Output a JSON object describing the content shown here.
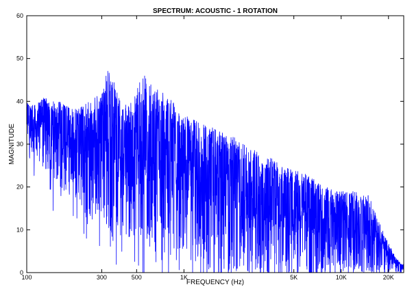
{
  "chart_data": {
    "type": "line",
    "title": "SPECTRUM: ACOUSTIC - 1 ROTATION",
    "xlabel": "FREQUENCY (Hz)",
    "ylabel": "MAGNITUDE",
    "x_scale": "log",
    "xlim": [
      100,
      25000
    ],
    "ylim": [
      0,
      60
    ],
    "x_ticks": [
      {
        "value": 100,
        "label": "100"
      },
      {
        "value": 300,
        "label": "300"
      },
      {
        "value": 500,
        "label": "500"
      },
      {
        "value": 1000,
        "label": "1K"
      },
      {
        "value": 5000,
        "label": "5K"
      },
      {
        "value": 10000,
        "label": "10K"
      },
      {
        "value": 20000,
        "label": "20K"
      }
    ],
    "y_ticks": [
      {
        "value": 0,
        "label": "0"
      },
      {
        "value": 10,
        "label": "10"
      },
      {
        "value": 20,
        "label": "20"
      },
      {
        "value": 30,
        "label": "30"
      },
      {
        "value": 40,
        "label": "40"
      },
      {
        "value": 50,
        "label": "50"
      },
      {
        "value": 60,
        "label": "60"
      }
    ],
    "grid": false,
    "series": [
      {
        "color": "#0000ff",
        "upper_envelope": {
          "x": [
            100,
            110,
            130,
            160,
            200,
            250,
            300,
            330,
            360,
            400,
            450,
            500,
            550,
            600,
            700,
            800,
            1000,
            1300,
            1700,
            2000,
            3000,
            4000,
            5000,
            6000,
            8000,
            10000,
            12000,
            15000,
            18000,
            20000,
            22000,
            24000
          ],
          "y": [
            40,
            39,
            41,
            40,
            38,
            40,
            42,
            49,
            45,
            39,
            40,
            43,
            47,
            45,
            43,
            41,
            37,
            35,
            33,
            32,
            28,
            26,
            24,
            23,
            20,
            19,
            19,
            18,
            11,
            7,
            4,
            2
          ]
        },
        "lower_envelope": {
          "x": [
            100,
            130,
            160,
            200,
            250,
            300,
            350,
            400,
            500,
            600,
            700,
            800,
            1000,
            1300,
            1700,
            2000,
            3000,
            5000,
            8000,
            12000,
            18000,
            24000
          ],
          "y": [
            30,
            24,
            20,
            18,
            12,
            14,
            8,
            10,
            8,
            5,
            4,
            3,
            2,
            1,
            0,
            0,
            0,
            0,
            0,
            0,
            0,
            0
          ]
        }
      }
    ]
  }
}
